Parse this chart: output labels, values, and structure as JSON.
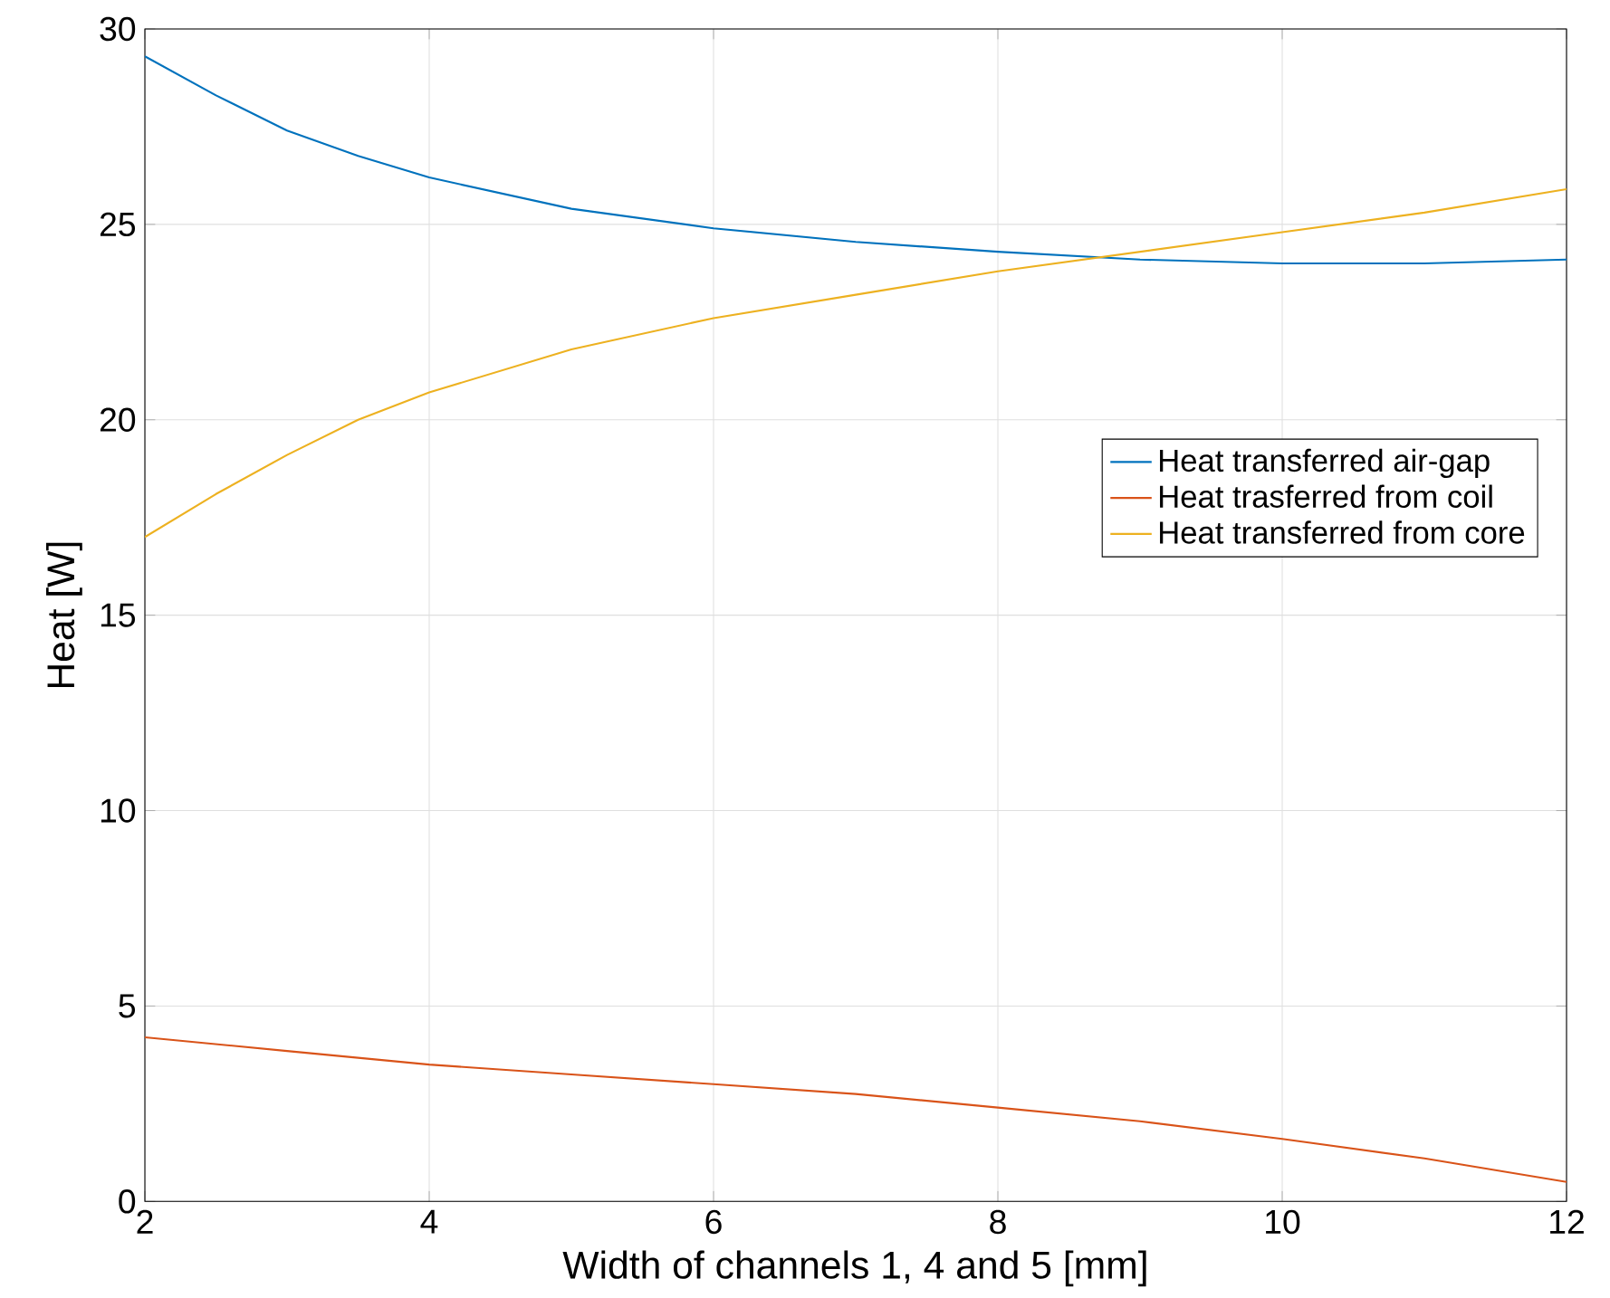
{
  "chart_data": {
    "type": "line",
    "xlabel": "Width of channels 1, 4 and 5 [mm]",
    "ylabel": "Heat [W]",
    "xlim": [
      2,
      12
    ],
    "xticks": [
      2,
      4,
      6,
      8,
      10,
      12
    ],
    "ylim": [
      0,
      30
    ],
    "yticks": [
      0,
      5,
      10,
      15,
      20,
      25,
      30
    ],
    "grid": true,
    "legend": "right",
    "marker": "none",
    "line_style": "solid",
    "series": [
      {
        "name": "Heat transferred air-gap",
        "color": "#0072bd",
        "x": [
          2,
          2.5,
          3,
          3.5,
          4,
          5,
          6,
          7,
          8,
          9,
          10,
          11,
          12
        ],
        "values": [
          29.3,
          28.3,
          27.4,
          26.75,
          26.2,
          25.4,
          24.9,
          24.55,
          24.3,
          24.1,
          24.0,
          24.0,
          24.1
        ]
      },
      {
        "name": "Heat trasferred from coil",
        "color": "#d95319",
        "x": [
          2,
          3,
          4,
          5,
          6,
          7,
          8,
          9,
          10,
          11,
          12
        ],
        "values": [
          4.2,
          3.85,
          3.5,
          3.25,
          3.0,
          2.75,
          2.4,
          2.05,
          1.6,
          1.1,
          0.5
        ]
      },
      {
        "name": "Heat transferred from core",
        "color": "#edb120",
        "x": [
          2,
          2.5,
          3,
          3.5,
          4,
          5,
          6,
          7,
          8,
          9,
          10,
          11,
          12
        ],
        "values": [
          17.0,
          18.1,
          19.1,
          20.0,
          20.7,
          21.8,
          22.6,
          23.2,
          23.8,
          24.3,
          24.8,
          25.3,
          25.9
        ]
      }
    ]
  }
}
